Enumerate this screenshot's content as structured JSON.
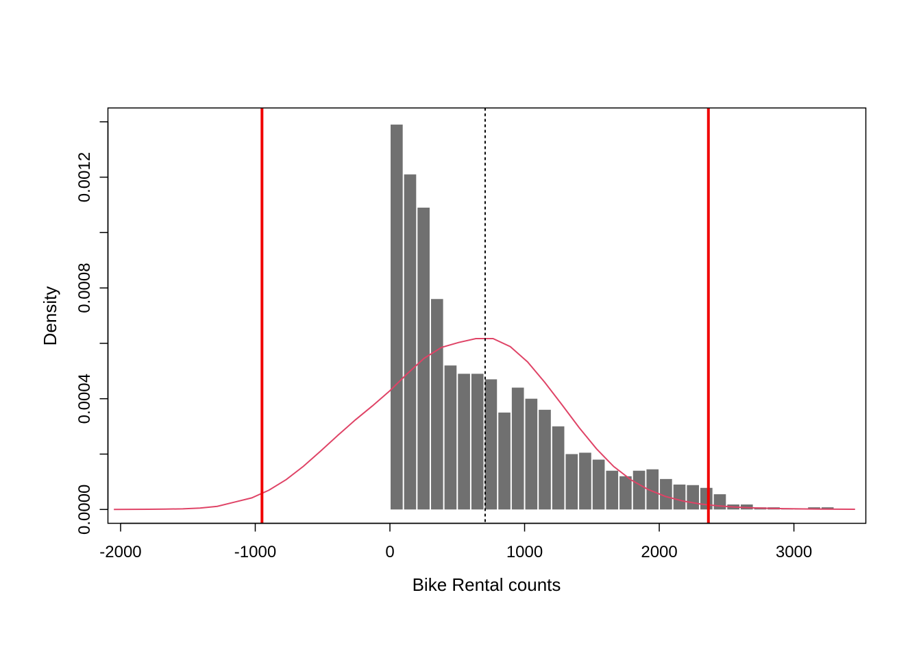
{
  "chart_data": {
    "type": "bar",
    "title": "",
    "xlabel": "Bike Rental counts",
    "ylabel": "Density",
    "xlim": [
      -2094,
      3534
    ],
    "ylim": [
      -5e-05,
      0.00145
    ],
    "x_ticks": [
      -2000,
      -1000,
      0,
      1000,
      2000,
      3000
    ],
    "x_tick_labels": [
      "-2000",
      "-1000",
      "0",
      "1000",
      "2000",
      "3000"
    ],
    "y_ticks": [
      0,
      0.0002,
      0.0004,
      0.0006,
      0.0008,
      0.001,
      0.0012,
      0.0014
    ],
    "y_tick_labels": [
      "0.0000",
      "",
      "0.0004",
      "",
      "0.0008",
      "",
      "0.0012",
      ""
    ],
    "grid": false,
    "histogram": {
      "bin_start": 0,
      "bin_width": 100,
      "values": [
        0.00139,
        0.00121,
        0.00109,
        0.00076,
        0.00052,
        0.00049,
        0.00049,
        0.00047,
        0.00035,
        0.00044,
        0.0004,
        0.00036,
        0.0003,
        0.0002,
        0.000205,
        0.00018,
        0.00014,
        0.00012,
        0.00014,
        0.000145,
        0.00011,
        9e-05,
        8.8e-05,
        7.8e-05,
        5.5e-05,
        1.8e-05,
        1.8e-05,
        7.8e-06,
        7.8e-06,
        4e-06,
        2e-06,
        7.8e-06,
        7.8e-06
      ],
      "color": "#707070"
    },
    "density_curve": {
      "color": "#DF4366",
      "x": [
        -2050,
        -1922,
        -1794,
        -1666,
        -1538,
        -1410,
        -1282,
        -1154,
        -1026,
        -898,
        -770,
        -642,
        -514,
        -386,
        -258,
        -130,
        -2,
        126,
        254,
        382,
        510,
        638,
        766,
        894,
        1022,
        1150,
        1278,
        1406,
        1534,
        1662,
        1790,
        1918,
        2046,
        2174,
        2302,
        2430,
        2558,
        2686,
        2814,
        2942,
        3070,
        3198,
        3326,
        3454
      ],
      "y": [
        2.58e-07,
        3.6e-07,
        6.41e-07,
        1.21e-06,
        2.42e-06,
        5.1e-06,
        1.13e-05,
        2.66e-05,
        4.19e-05,
        6.97e-05,
        0.000108,
        0.000156,
        0.000211,
        0.000268,
        0.000323,
        0.000374,
        0.000428,
        0.000489,
        0.000546,
        0.000585,
        0.000603,
        0.000617,
        0.000617,
        0.000588,
        0.000533,
        0.000459,
        0.000378,
        0.000295,
        0.000219,
        0.000155,
        0.000107,
        7.2e-05,
        4.7e-05,
        3.07e-05,
        2e-05,
        1.33e-05,
        8.83e-06,
        5.94e-06,
        4.03e-06,
        2.76e-06,
        1.91e-06,
        1.34e-06,
        9.5e-07,
        6.8e-07
      ]
    },
    "reference_lines": [
      {
        "x": -950,
        "color": "#F00000",
        "style": "solid"
      },
      {
        "x": 2365,
        "color": "#F00000",
        "style": "solid"
      },
      {
        "x": 707,
        "color": "#000000",
        "style": "dotted"
      }
    ]
  }
}
